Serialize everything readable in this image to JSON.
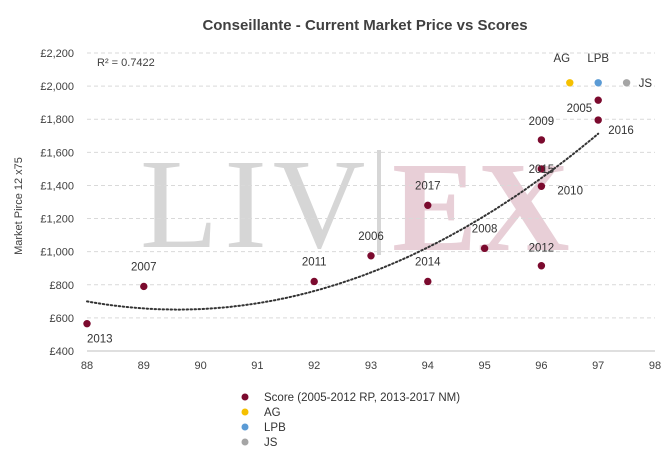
{
  "chart_data": {
    "type": "scatter",
    "title": "Conseillante - Current Market Price vs Scores",
    "xlabel": "",
    "ylabel": "Market Pirce 12 x75",
    "xlim": [
      88,
      98
    ],
    "ylim": [
      400,
      2200
    ],
    "x_ticks": [
      88,
      89,
      90,
      91,
      92,
      93,
      94,
      95,
      96,
      97,
      98
    ],
    "y_ticks": [
      400,
      600,
      800,
      1000,
      1200,
      1400,
      1600,
      1800,
      2000,
      2200
    ],
    "y_tick_labels": [
      "£400",
      "£600",
      "£800",
      "£1,000",
      "£1,200",
      "£1,400",
      "£1,600",
      "£1,800",
      "£2,000",
      "£2,200"
    ],
    "grid": "horizontal dashed",
    "annotation": "R² = 0.7422",
    "watermark": "LIV-EX",
    "legend_position": "bottom",
    "trendline": {
      "type": "polynomial",
      "style": "dotted",
      "color": "#333333"
    },
    "series": [
      {
        "name": "Score (2005-2012 RP, 2013-2017 NM)",
        "color": "#7b0a2e",
        "points": [
          {
            "label": "2013",
            "x": 88,
            "y": 565
          },
          {
            "label": "2007",
            "x": 89,
            "y": 790
          },
          {
            "label": "2011",
            "x": 92,
            "y": 820
          },
          {
            "label": "2006",
            "x": 93,
            "y": 975
          },
          {
            "label": "2014",
            "x": 94,
            "y": 820
          },
          {
            "label": "2017",
            "x": 94,
            "y": 1280
          },
          {
            "label": "2008",
            "x": 95,
            "y": 1020
          },
          {
            "label": "2012",
            "x": 96,
            "y": 915
          },
          {
            "label": "2010",
            "x": 96,
            "y": 1395
          },
          {
            "label": "2015",
            "x": 96,
            "y": 1500
          },
          {
            "label": "2009",
            "x": 96,
            "y": 1675
          },
          {
            "label": "2016",
            "x": 97,
            "y": 1795
          },
          {
            "label": "2005",
            "x": 97,
            "y": 1915
          }
        ]
      },
      {
        "name": "AG",
        "color": "#f5c000",
        "points": [
          {
            "label": "AG",
            "x": 96.5,
            "y": 2020
          }
        ]
      },
      {
        "name": "LPB",
        "color": "#5b9bd5",
        "points": [
          {
            "label": "LPB",
            "x": 97,
            "y": 2020
          }
        ]
      },
      {
        "name": "JS",
        "color": "#a5a5a5",
        "points": [
          {
            "label": "JS",
            "x": 97.5,
            "y": 2020
          }
        ]
      }
    ]
  }
}
